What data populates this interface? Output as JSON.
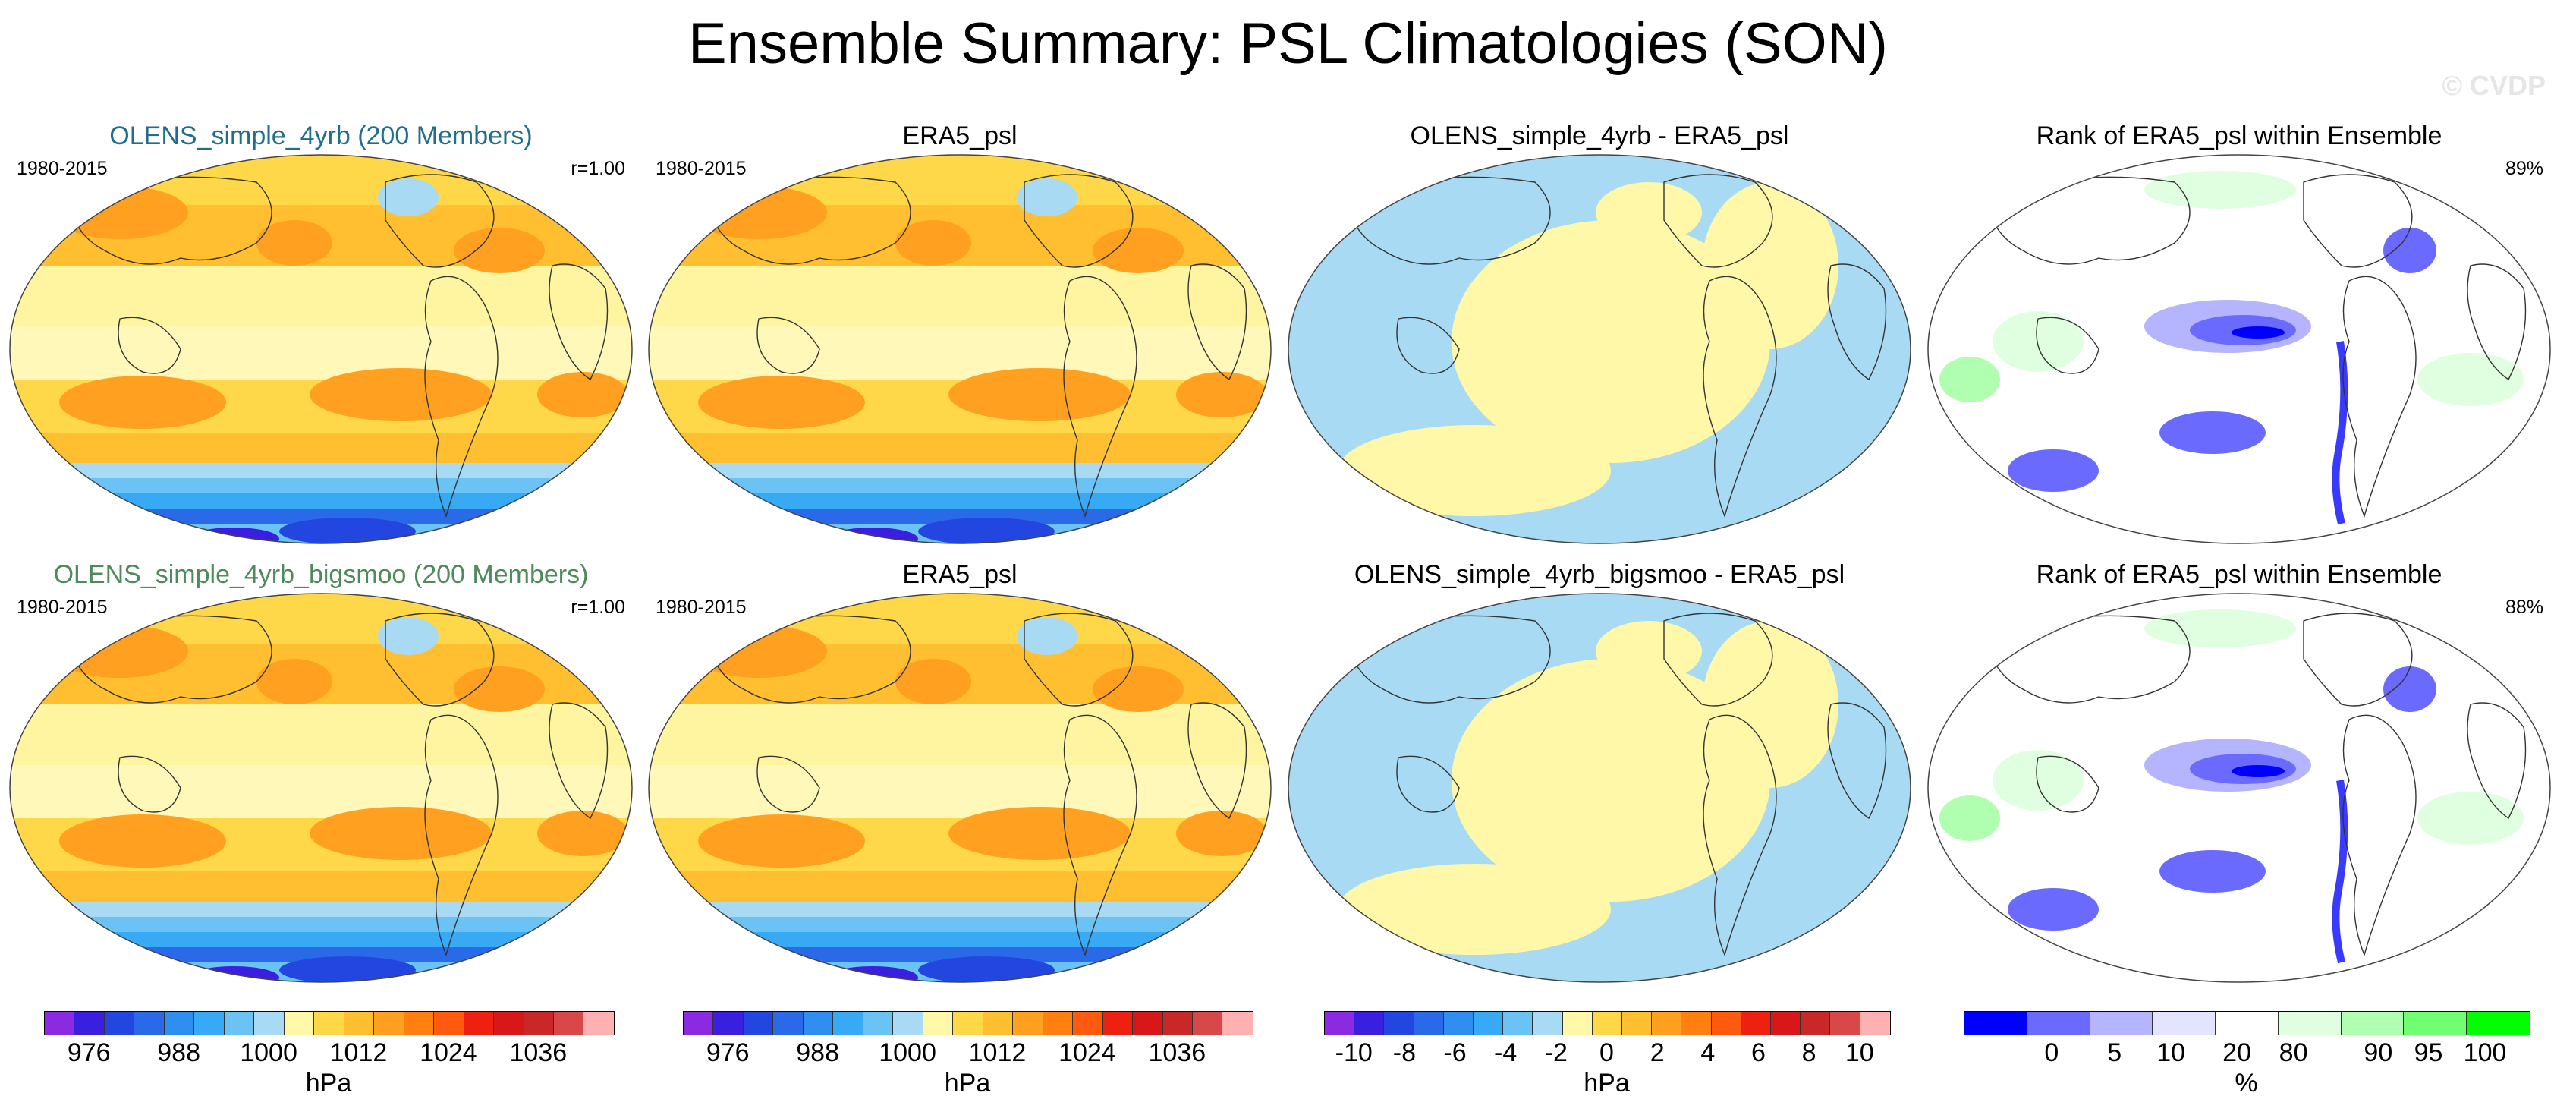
{
  "title": "Ensemble Summary: PSL Climatologies (SON)",
  "watermark": "© CVDP",
  "colors": {
    "title_row1": "#1f6f8b",
    "title_row2": "#4f8a5b"
  },
  "panels": [
    {
      "title": "OLENS_simple_4yrb (200 Members)",
      "left": "1980-2015",
      "right": "r=1.00",
      "type": "clim"
    },
    {
      "title": "ERA5_psl",
      "left": "1980-2015",
      "right": "",
      "type": "clim"
    },
    {
      "title": "OLENS_simple_4yrb - ERA5_psl",
      "left": "",
      "right": "",
      "type": "diff"
    },
    {
      "title": "Rank of ERA5_psl within Ensemble",
      "left": "",
      "right": "89%",
      "type": "rank"
    },
    {
      "title": "OLENS_simple_4yrb_bigsmoo (200 Members)",
      "left": "1980-2015",
      "right": "r=1.00",
      "type": "clim"
    },
    {
      "title": "ERA5_psl",
      "left": "1980-2015",
      "right": "",
      "type": "clim"
    },
    {
      "title": "OLENS_simple_4yrb_bigsmoo - ERA5_psl",
      "left": "",
      "right": "",
      "type": "diff"
    },
    {
      "title": "Rank of ERA5_psl within Ensemble",
      "left": "",
      "right": "88%",
      "type": "rank"
    }
  ],
  "colorbars": [
    {
      "unit": "hPa",
      "ticks": [
        "976",
        "988",
        "1000",
        "1012",
        "1024",
        "1036"
      ],
      "colors": [
        "#8a2be2",
        "#3a1fe0",
        "#2446e0",
        "#2a6ae8",
        "#2f8ff0",
        "#37a9f5",
        "#6bc3f5",
        "#a9daf3",
        "#fff8a8",
        "#ffd84a",
        "#ffbf30",
        "#ffa020",
        "#ff8010",
        "#ff5a10",
        "#ee2010",
        "#d81818",
        "#c82828",
        "#d84848",
        "#ffb0b0"
      ]
    },
    {
      "unit": "hPa",
      "ticks": [
        "976",
        "988",
        "1000",
        "1012",
        "1024",
        "1036"
      ],
      "colors": [
        "#8a2be2",
        "#3a1fe0",
        "#2446e0",
        "#2a6ae8",
        "#2f8ff0",
        "#37a9f5",
        "#6bc3f5",
        "#a9daf3",
        "#fff8a8",
        "#ffd84a",
        "#ffbf30",
        "#ffa020",
        "#ff8010",
        "#ff5a10",
        "#ee2010",
        "#d81818",
        "#c82828",
        "#d84848",
        "#ffb0b0"
      ]
    },
    {
      "unit": "hPa",
      "ticks": [
        "-10",
        "-8",
        "-6",
        "-4",
        "-2",
        "0",
        "2",
        "4",
        "6",
        "8",
        "10"
      ],
      "colors": [
        "#8a2be2",
        "#3a1fe0",
        "#2446e0",
        "#2a6ae8",
        "#2f8ff0",
        "#37a9f5",
        "#6bc3f5",
        "#a9daf3",
        "#fff8a8",
        "#ffd84a",
        "#ffbf30",
        "#ffa020",
        "#ff8010",
        "#ff5a10",
        "#ee2010",
        "#d81818",
        "#c82828",
        "#d84848",
        "#ffb0b0"
      ]
    },
    {
      "unit": "%",
      "ticks": [
        "0",
        "5",
        "10",
        "20",
        "80",
        "90",
        "95",
        "100"
      ],
      "colors": [
        "#0000ff",
        "#6a6aff",
        "#b4b4ff",
        "#e4e4ff",
        "#ffffff",
        "#e0ffe0",
        "#b0ffb0",
        "#70ff70",
        "#00ff00"
      ]
    }
  ]
}
